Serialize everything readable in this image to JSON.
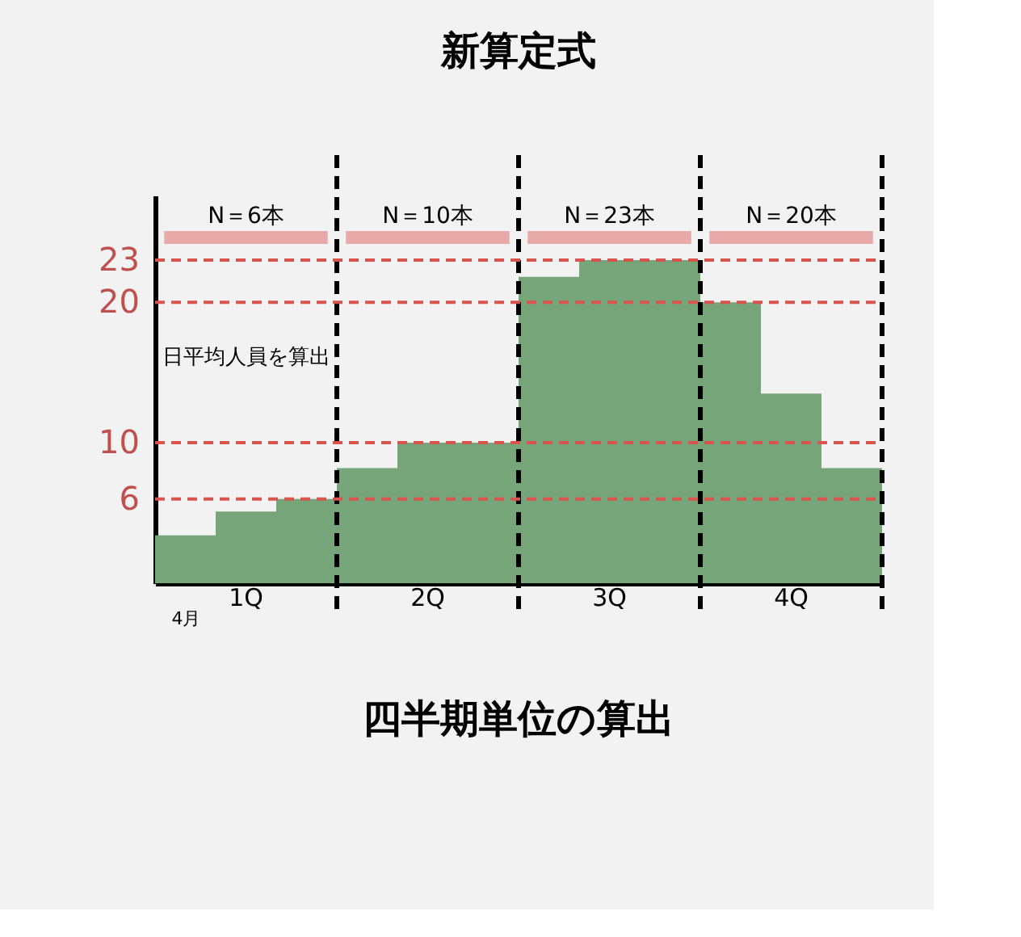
{
  "chart_data": {
    "type": "bar",
    "title": "新算定式",
    "categories": [
      "4月",
      null,
      null,
      null,
      null,
      null,
      null,
      null,
      null,
      null,
      null,
      null
    ],
    "values": [
      3.4,
      5.1,
      6,
      8.2,
      10,
      10,
      21.8,
      23,
      23,
      20,
      13.5,
      8.2
    ],
    "color": "#76a57a",
    "ylim": [
      0,
      27.6
    ],
    "yticks": [
      6,
      10,
      20,
      23
    ],
    "ref_lines": [
      {
        "axis": "y",
        "value": 23,
        "color": "#d9534f",
        "line_style": "dashed"
      },
      {
        "axis": "y",
        "value": 20,
        "color": "#d9534f",
        "line_style": "dashed"
      },
      {
        "axis": "y",
        "value": 10,
        "color": "#d9534f",
        "line_style": "dashed"
      },
      {
        "axis": "y",
        "value": 6,
        "color": "#d9534f",
        "line_style": "dashed"
      }
    ],
    "annotations": [
      "N＝6本",
      "N＝10本",
      "N＝23本",
      "N＝20本",
      "日平均人員を算出",
      "1Q",
      "2Q",
      "3Q",
      "4Q",
      "四半期単位の算出"
    ]
  }
}
